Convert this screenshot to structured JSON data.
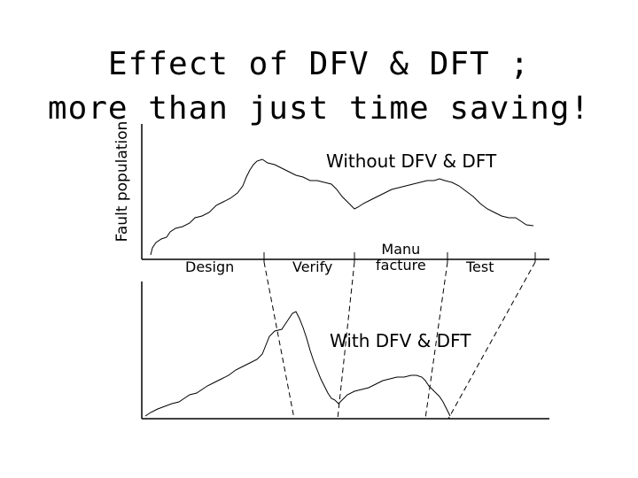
{
  "title_line1": "Effect of DFV & DFT ;",
  "title_line2": "more than just time saving!",
  "y_axis_label": "Fault population",
  "annotation_top": "Without DFV & DFT",
  "annotation_bottom": "With DFV & DFT",
  "phases": {
    "design": "Design",
    "verify": "Verify",
    "manufacture_line1": "Manu",
    "manufacture_line2": "facture",
    "test": "Test"
  }
}
